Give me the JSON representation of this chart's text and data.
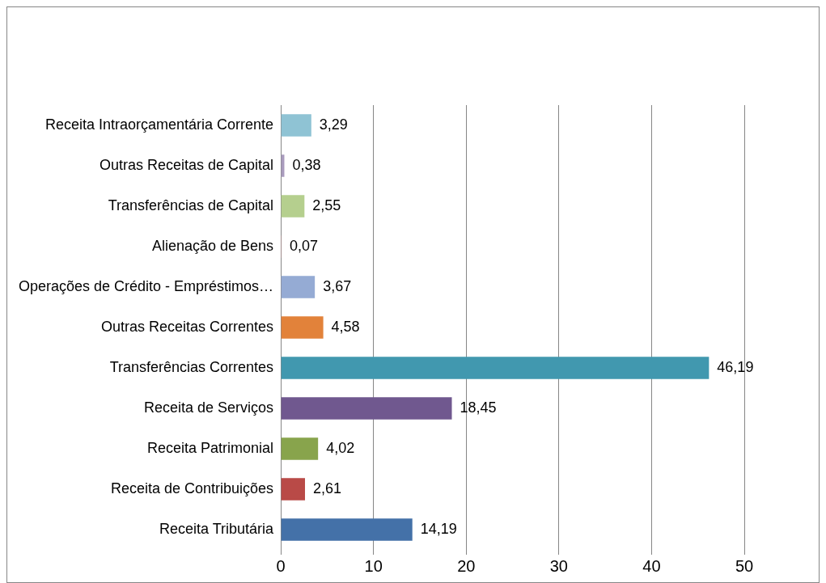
{
  "chart_data": {
    "type": "bar",
    "orientation": "horizontal",
    "categories": [
      "Receita Intraorçamentária Corrente",
      "Outras Receitas de Capital",
      "Transferências de Capital",
      "Alienação de Bens",
      "Operações de Crédito - Empréstimos…",
      "Outras Receitas Correntes",
      "Transferências Correntes",
      "Receita de Serviços",
      "Receita Patrimonial",
      "Receita de Contribuições",
      "Receita Tributária"
    ],
    "values": [
      3.29,
      0.38,
      2.55,
      0.07,
      3.67,
      4.58,
      46.19,
      18.45,
      4.02,
      2.61,
      14.19
    ],
    "value_labels": [
      "3,29",
      "0,38",
      "2,55",
      "0,07",
      "3,67",
      "4,58",
      "46,19",
      "18,45",
      "4,02",
      "2,61",
      "14,19"
    ],
    "colors": [
      "#8fc3d4",
      "#a99bbd",
      "#b5cf8e",
      "#d99694",
      "#95abd4",
      "#e2823a",
      "#4198af",
      "#70588f",
      "#88a44c",
      "#b94a47",
      "#4471a8"
    ],
    "xlim": [
      0,
      50
    ],
    "xticks": [
      0,
      10,
      20,
      30,
      40,
      50
    ],
    "grid": "x",
    "legend": false
  }
}
